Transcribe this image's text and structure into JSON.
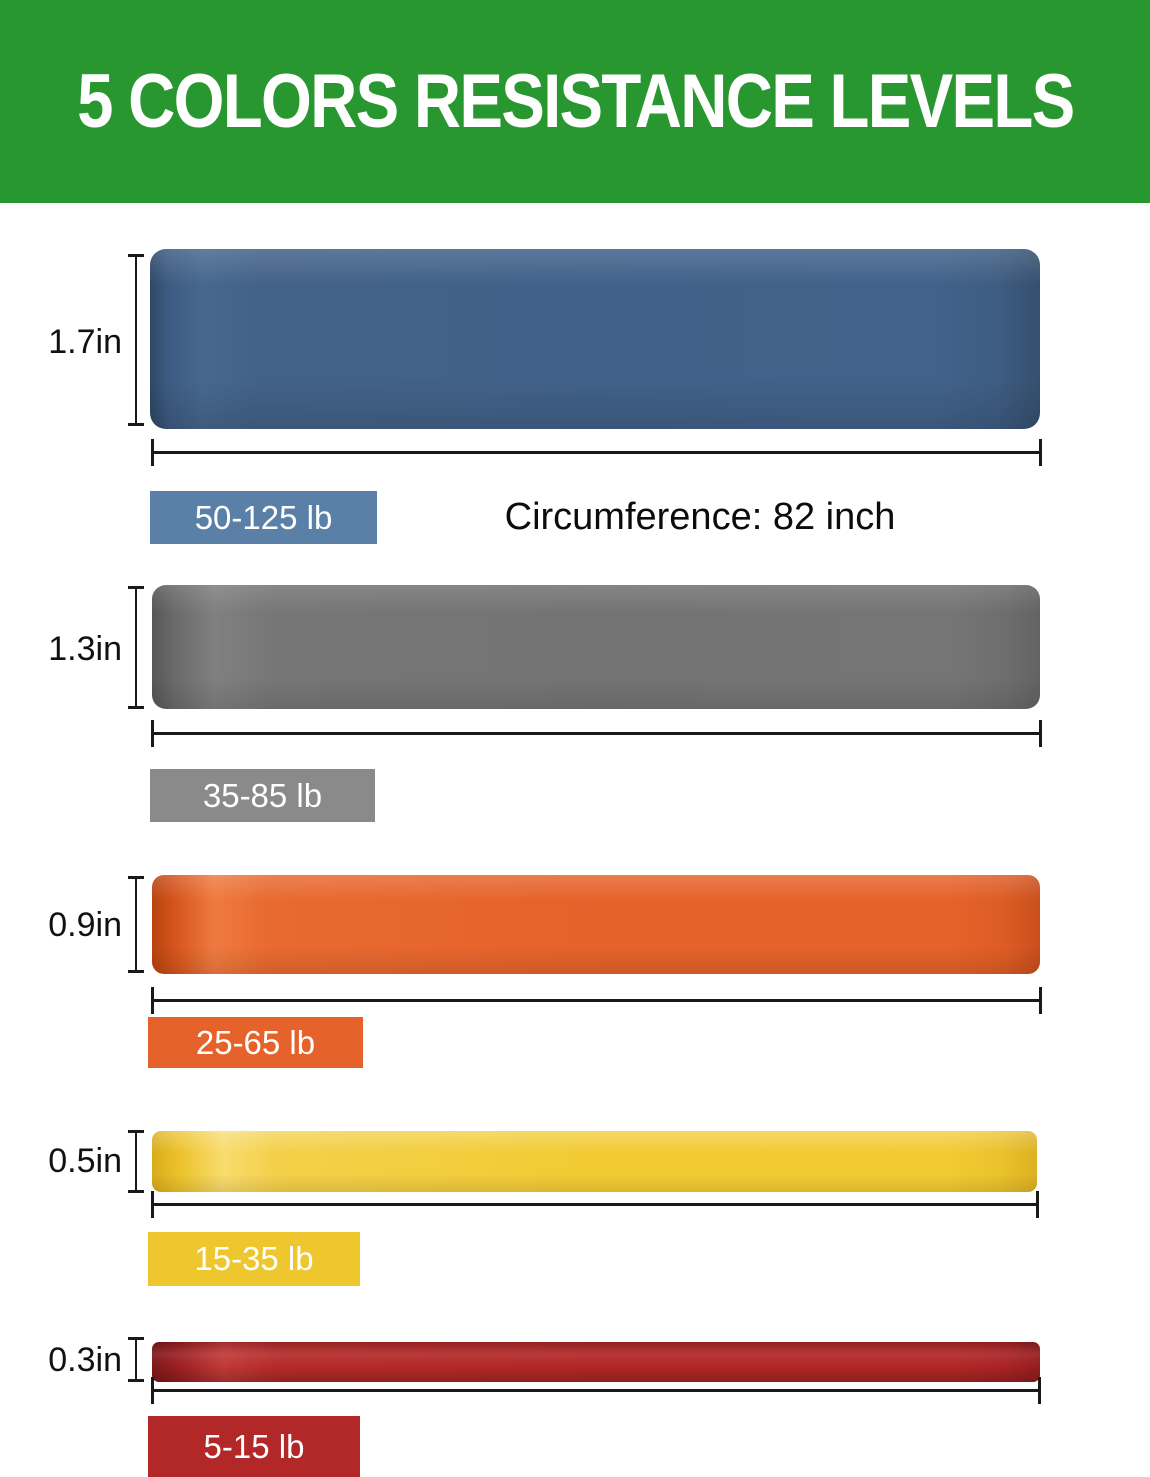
{
  "header": {
    "title": "5 COLORS RESISTANCE LEVELS",
    "bg_color": "#28972f",
    "text_color": "#ffffff"
  },
  "circumference_note": "Circumference: 82 inch",
  "bands": [
    {
      "name": "blue",
      "width_label": "1.7in",
      "weight_label": "50-125 lb",
      "band_color": "#41618a",
      "label_bg": "#5b80a8"
    },
    {
      "name": "gray",
      "width_label": "1.3in",
      "weight_label": "35-85 lb",
      "band_color": "#747474",
      "label_bg": "#8a8a8a"
    },
    {
      "name": "orange",
      "width_label": "0.9in",
      "weight_label": "25-65 lb",
      "band_color": "#e6622b",
      "label_bg": "#e6622b"
    },
    {
      "name": "yellow",
      "width_label": "0.5in",
      "weight_label": "15-35 lb",
      "band_color": "#f2cb33",
      "label_bg": "#eec62e"
    },
    {
      "name": "red",
      "width_label": "0.3in",
      "weight_label": "5-15 lb",
      "band_color": "#b22727",
      "label_bg": "#b22727"
    }
  ]
}
